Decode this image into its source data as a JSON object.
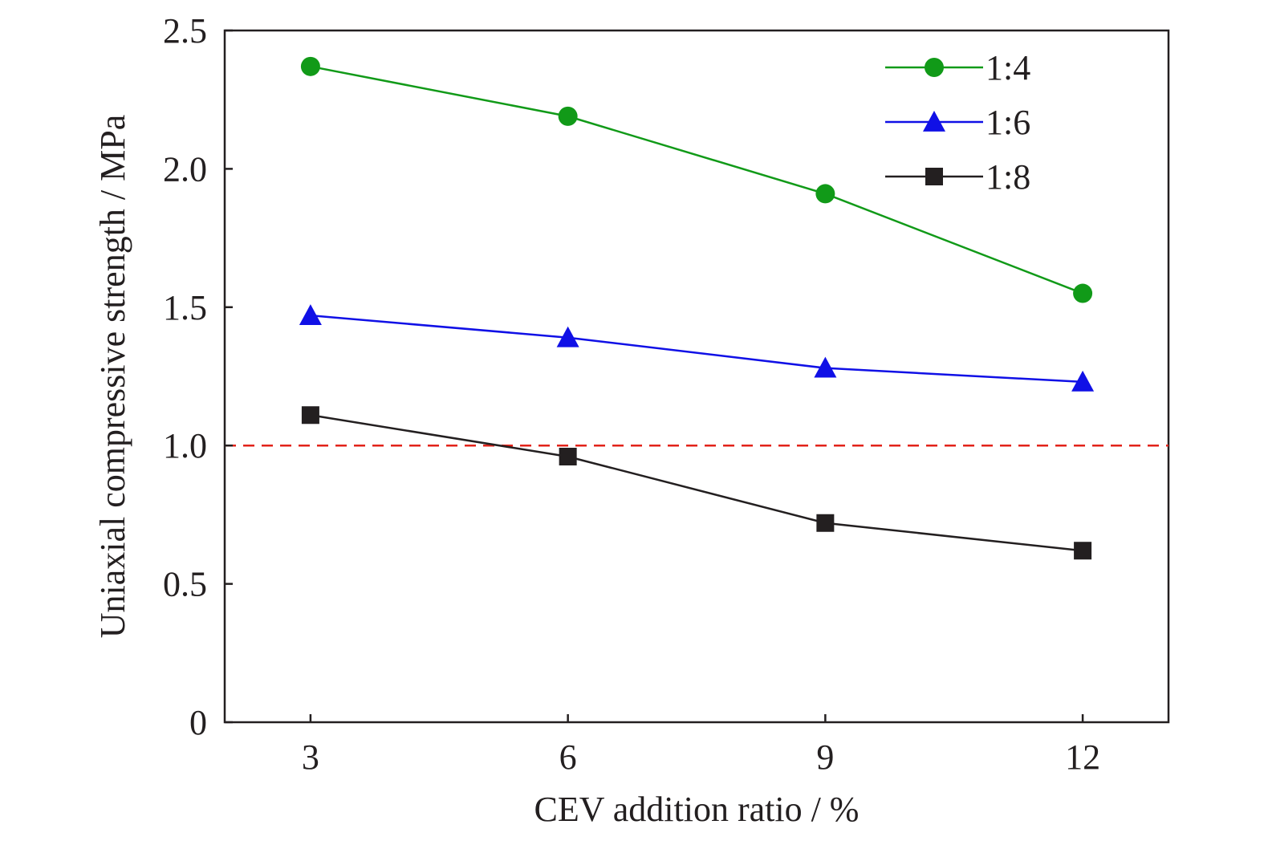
{
  "chart_data": {
    "type": "line",
    "title": "",
    "xlabel": "CEV addition ratio / %",
    "ylabel": "Uniaxial compressive strength / MPa",
    "x": [
      3,
      6,
      9,
      12
    ],
    "x_ticks": [
      "3",
      "6",
      "9",
      "12"
    ],
    "xlim": [
      2,
      13
    ],
    "ylim": [
      0,
      2.5
    ],
    "y_ticks": [
      "0",
      "0.5",
      "1.0",
      "1.5",
      "2.0",
      "2.5"
    ],
    "y_tick_values": [
      0,
      0.5,
      1.0,
      1.5,
      2.0,
      2.5
    ],
    "grid": false,
    "legend_position": "top-right",
    "series": [
      {
        "name": "1:4",
        "marker": "circle",
        "color": "#119a18",
        "values": [
          2.37,
          2.19,
          1.91,
          1.55
        ]
      },
      {
        "name": "1:6",
        "marker": "triangle",
        "color": "#1010e6",
        "values": [
          1.47,
          1.39,
          1.28,
          1.23
        ]
      },
      {
        "name": "1:8",
        "marker": "square",
        "color": "#231f20",
        "values": [
          1.11,
          0.96,
          0.72,
          0.62
        ]
      }
    ],
    "reference_line": {
      "y": 1.0,
      "color": "#e2231a",
      "style": "dashed"
    }
  }
}
